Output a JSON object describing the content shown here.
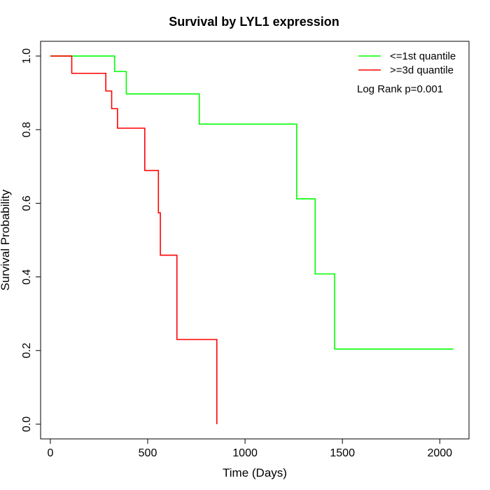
{
  "chart_data": {
    "type": "line",
    "title": "Survival by LYL1 expression",
    "xlabel": "Time (Days)",
    "ylabel": "Survival Probability",
    "xlim": [
      -50,
      2150
    ],
    "ylim": [
      -0.04,
      1.04
    ],
    "x_ticks": [
      0,
      500,
      1000,
      1500,
      2000
    ],
    "y_ticks": [
      0.0,
      0.2,
      0.4,
      0.6,
      0.8,
      1.0
    ],
    "x_tick_labels": [
      "0",
      "500",
      "1000",
      "1500",
      "2000"
    ],
    "y_tick_labels": [
      "0.0",
      "0.2",
      "0.4",
      "0.6",
      "0.8",
      "1.0"
    ],
    "grid": false,
    "legend_position": "top-right",
    "annotation": "Log Rank p=0.001",
    "series": [
      {
        "name": "<=1st quantile",
        "color": "#00ff00",
        "step": true,
        "x": [
          0,
          330,
          390,
          765,
          1265,
          1360,
          1460,
          2070
        ],
        "y": [
          1.0,
          0.958,
          0.897,
          0.815,
          0.612,
          0.408,
          0.204,
          0.204
        ]
      },
      {
        "name": ">=3d quantile",
        "color": "#ff0000",
        "step": true,
        "x": [
          0,
          110,
          285,
          315,
          345,
          485,
          555,
          565,
          650,
          855,
          855
        ],
        "y": [
          1.0,
          0.953,
          0.905,
          0.857,
          0.804,
          0.689,
          0.574,
          0.459,
          0.23,
          0.23,
          0.0
        ]
      }
    ]
  }
}
